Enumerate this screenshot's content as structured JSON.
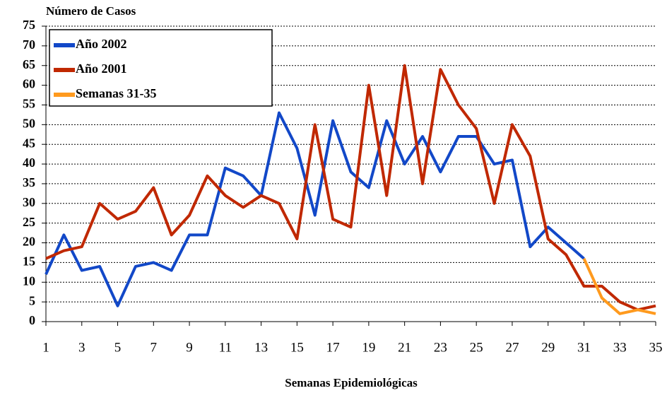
{
  "chart_data": {
    "type": "line",
    "title": "Número de Casos",
    "x_label": "Semanas Epidemiológicas",
    "x": [
      1,
      2,
      3,
      4,
      5,
      6,
      7,
      8,
      9,
      10,
      11,
      12,
      13,
      14,
      15,
      16,
      17,
      18,
      19,
      20,
      21,
      22,
      23,
      24,
      25,
      26,
      27,
      28,
      29,
      30,
      31,
      32,
      33,
      34,
      35
    ],
    "series": [
      {
        "name": "Año 2002",
        "color": "#1248c8",
        "values": [
          12,
          22,
          13,
          14,
          4,
          14,
          15,
          13,
          22,
          22,
          39,
          37,
          32,
          53,
          44,
          27,
          51,
          38,
          34,
          51,
          40,
          47,
          38,
          47,
          47,
          40,
          41,
          19,
          24,
          20,
          16,
          null,
          null,
          null,
          null
        ]
      },
      {
        "name": "Año 2001",
        "color": "#c02800",
        "values": [
          16,
          18,
          19,
          30,
          26,
          28,
          34,
          22,
          27,
          37,
          32,
          29,
          32,
          30,
          21,
          50,
          26,
          24,
          60,
          32,
          65,
          35,
          64,
          55,
          49,
          30,
          50,
          42,
          21,
          17,
          9,
          9,
          5,
          3,
          4
        ]
      },
      {
        "name": "Semanas 31-35",
        "color": "#ff9a1e",
        "values": [
          null,
          null,
          null,
          null,
          null,
          null,
          null,
          null,
          null,
          null,
          null,
          null,
          null,
          null,
          null,
          null,
          null,
          null,
          null,
          null,
          null,
          null,
          null,
          null,
          null,
          null,
          null,
          null,
          null,
          null,
          16,
          6,
          2,
          3,
          2
        ]
      }
    ],
    "xlim": [
      1,
      35
    ],
    "xticks": [
      1,
      3,
      5,
      7,
      9,
      11,
      13,
      15,
      17,
      19,
      21,
      23,
      25,
      27,
      29,
      31,
      33,
      35
    ],
    "ylim": [
      0,
      75
    ],
    "yticks": [
      0,
      5,
      10,
      15,
      20,
      25,
      30,
      35,
      40,
      45,
      50,
      55,
      60,
      65,
      70,
      75
    ],
    "grid": true,
    "legend": "upper left"
  }
}
